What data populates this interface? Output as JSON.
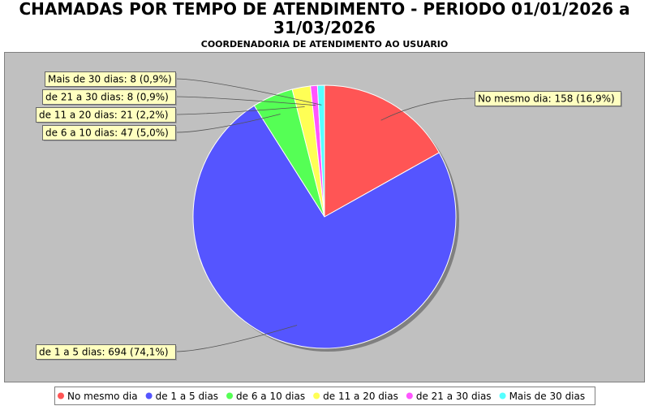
{
  "chart_data": {
    "type": "pie",
    "title": "CHAMADAS POR TEMPO DE ATENDIMENTO - PERIODO 01/01/2026 a 31/03/2026",
    "title_line1": "CHAMADAS POR TEMPO DE ATENDIMENTO - PERIODO 01/01/2026 a",
    "title_line2": "31/03/2026",
    "subtitle": "COORDENADORIA DE ATENDIMENTO AO USUARIO",
    "legend_placement": "bottom",
    "slices": [
      {
        "name": "No mesmo dia",
        "value": 158,
        "percent": "16,9%",
        "label": "No mesmo dia: 158 (16,9%)",
        "color": "#ff5555"
      },
      {
        "name": "de 1 a 5 dias",
        "value": 694,
        "percent": "74,1%",
        "label": "de 1 a 5 dias: 694 (74,1%)",
        "color": "#5555ff"
      },
      {
        "name": "de 6 a 10 dias",
        "value": 47,
        "percent": "5,0%",
        "label": "de 6 a 10 dias: 47 (5,0%)",
        "color": "#55ff55"
      },
      {
        "name": "de 11 a 20 dias",
        "value": 21,
        "percent": "2,2%",
        "label": "de 11 a 20 dias: 21 (2,2%)",
        "color": "#ffff55"
      },
      {
        "name": "de 21 a 30 dias",
        "value": 8,
        "percent": "0,9%",
        "label": "de 21 a 30 dias: 8 (0,9%)",
        "color": "#ff55ff"
      },
      {
        "name": "Mais de 30 dias",
        "value": 8,
        "percent": "0,9%",
        "label": "Mais de 30 dias: 8 (0,9%)",
        "color": "#55ffff"
      }
    ],
    "plot_background": "#c0c0c0",
    "label_background": "#ffffc0"
  }
}
